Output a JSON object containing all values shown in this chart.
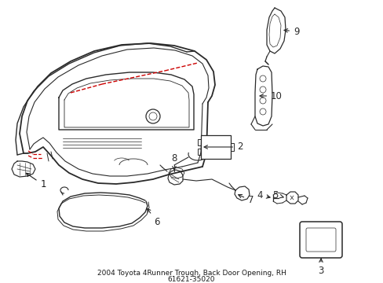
{
  "title": "2004 Toyota 4Runner Trough, Back Door Opening, RH",
  "part_num": "61621-35020",
  "bg_color": "#ffffff",
  "line_color": "#2a2a2a",
  "red_color": "#cc0000",
  "label_color": "#1a1a1a"
}
